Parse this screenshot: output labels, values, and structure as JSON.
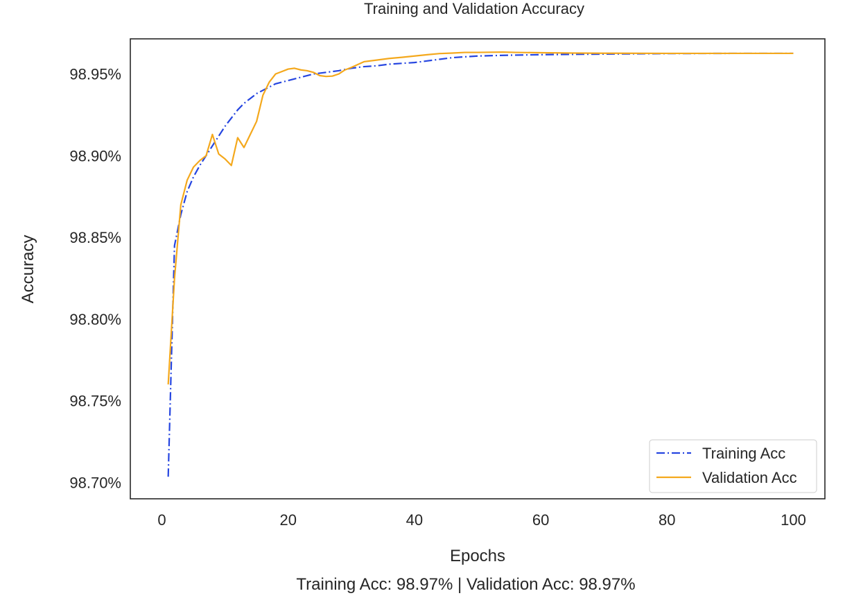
{
  "chart_data": {
    "type": "line",
    "title": "Training and Validation Accuracy",
    "xlabel": "Epochs",
    "ylabel": "Accuracy",
    "footer": "Training Acc: 98.97% | Validation Acc: 98.97%",
    "xlim": [
      -5,
      105
    ],
    "ylim": [
      98.69,
      98.9715
    ],
    "xticks": [
      0,
      20,
      40,
      60,
      80,
      100
    ],
    "yticks": [
      98.7,
      98.75,
      98.8,
      98.85,
      98.9,
      98.95
    ],
    "ytick_labels": [
      "98.70%",
      "98.75%",
      "98.80%",
      "98.85%",
      "98.90%",
      "98.95%"
    ],
    "grid": false,
    "legend_position": "lower-right",
    "series": [
      {
        "name": "Training Acc",
        "color": "#2545e0",
        "style": "dashdot",
        "x": [
          1,
          2,
          3,
          4,
          5,
          6,
          7,
          8,
          9,
          10,
          11,
          12,
          13,
          14,
          15,
          16,
          17,
          18,
          19,
          20,
          22,
          24,
          26,
          28,
          30,
          32,
          34,
          36,
          38,
          40,
          42,
          44,
          46,
          48,
          50,
          55,
          60,
          65,
          70,
          80,
          90,
          100
        ],
        "y": [
          98.7035,
          98.845,
          98.864,
          98.878,
          98.887,
          98.894,
          98.9,
          98.906,
          98.912,
          98.918,
          98.923,
          98.928,
          98.932,
          98.935,
          98.938,
          98.94,
          98.942,
          98.944,
          98.945,
          98.946,
          98.948,
          98.95,
          98.951,
          98.952,
          98.9535,
          98.9545,
          98.955,
          98.956,
          98.9565,
          98.957,
          98.958,
          98.959,
          98.96,
          98.9605,
          98.961,
          98.9615,
          98.9618,
          98.962,
          98.9622,
          98.9625,
          98.9626,
          98.9626
        ]
      },
      {
        "name": "Validation Acc",
        "color": "#f4a81c",
        "style": "solid",
        "x": [
          1,
          2,
          3,
          4,
          5,
          6,
          7,
          8,
          9,
          10,
          11,
          12,
          13,
          14,
          15,
          16,
          17,
          18,
          19,
          20,
          21,
          22,
          23,
          24,
          25,
          26,
          27,
          28,
          29,
          30,
          32,
          34,
          36,
          38,
          40,
          42,
          44,
          46,
          48,
          50,
          52,
          54,
          56,
          60,
          65,
          70,
          80,
          90,
          100
        ],
        "y": [
          98.76,
          98.825,
          98.87,
          98.885,
          98.893,
          98.897,
          98.9,
          98.913,
          98.901,
          98.898,
          98.894,
          98.911,
          98.905,
          98.913,
          98.921,
          98.937,
          98.945,
          98.95,
          98.9515,
          98.953,
          98.9535,
          98.9525,
          98.952,
          98.951,
          98.949,
          98.9485,
          98.9487,
          98.95,
          98.9525,
          98.954,
          98.9575,
          98.9585,
          98.9595,
          98.9602,
          98.961,
          98.9618,
          98.9625,
          98.9628,
          98.9632,
          98.9632,
          98.9633,
          98.9634,
          98.9632,
          98.963,
          98.9628,
          98.9627,
          98.9626,
          98.9626,
          98.9626
        ]
      }
    ]
  }
}
